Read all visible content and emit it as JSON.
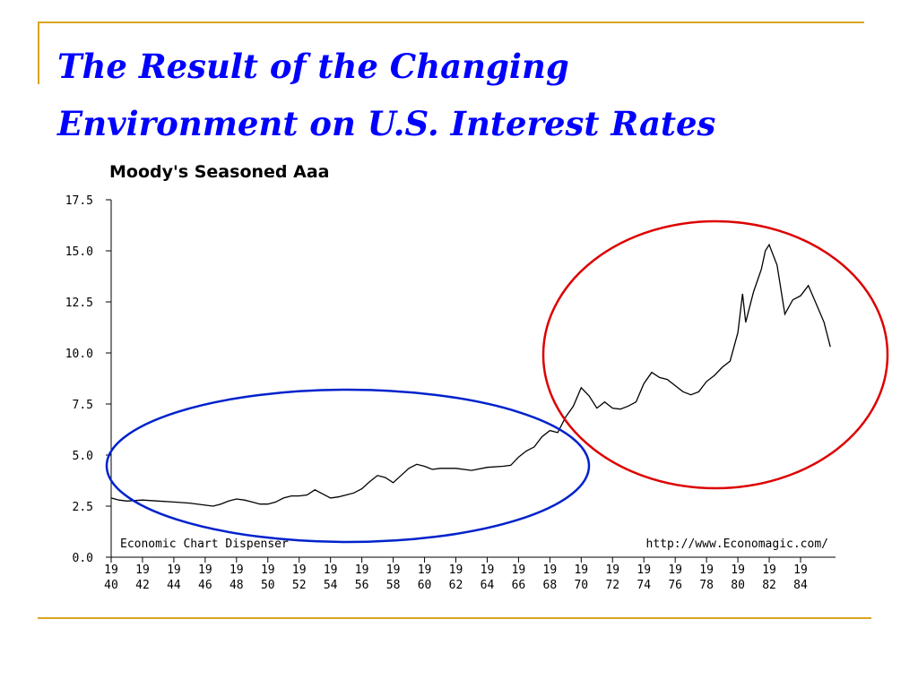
{
  "slide": {
    "title_line1": "The Result of the Changing",
    "title_line2": "Environment on U.S. Interest Rates"
  },
  "colors": {
    "title": "#0000ff",
    "frame": "#d9a521",
    "blue_ellipse": "#0022cc",
    "red_ellipse": "#dd0000",
    "line": "#000000"
  },
  "chart_data": {
    "type": "line",
    "title": "Moody's Seasoned Aaa",
    "xlabel": "",
    "ylabel": "",
    "source_left": "Economic Chart Dispenser",
    "source_right": "http://www.Economagic.com/",
    "xlim": [
      1940,
      1986
    ],
    "ylim": [
      0,
      17.5
    ],
    "y_ticks": [
      "0.0",
      "2.5",
      "5.0",
      "7.5",
      "10.0",
      "12.5",
      "15.0",
      "17.5"
    ],
    "x_tick_labels": [
      [
        "19",
        "40"
      ],
      [
        "19",
        "42"
      ],
      [
        "19",
        "44"
      ],
      [
        "19",
        "46"
      ],
      [
        "19",
        "48"
      ],
      [
        "19",
        "50"
      ],
      [
        "19",
        "52"
      ],
      [
        "19",
        "54"
      ],
      [
        "19",
        "56"
      ],
      [
        "19",
        "58"
      ],
      [
        "19",
        "60"
      ],
      [
        "19",
        "62"
      ],
      [
        "19",
        "64"
      ],
      [
        "19",
        "66"
      ],
      [
        "19",
        "68"
      ],
      [
        "19",
        "70"
      ],
      [
        "19",
        "72"
      ],
      [
        "19",
        "74"
      ],
      [
        "19",
        "76"
      ],
      [
        "19",
        "78"
      ],
      [
        "19",
        "80"
      ],
      [
        "19",
        "82"
      ],
      [
        "19",
        "84"
      ]
    ],
    "grid": false,
    "series": [
      {
        "x": [
          1940.0,
          1940.5,
          1941.0,
          1942.0,
          1943.0,
          1944.0,
          1945.0,
          1946.0,
          1946.5,
          1947.0,
          1947.5,
          1948.0,
          1948.5,
          1949.0,
          1949.5,
          1950.0,
          1950.5,
          1951.0,
          1951.5,
          1952.0,
          1952.5,
          1953.0,
          1953.5,
          1954.0,
          1954.5,
          1955.0,
          1955.5,
          1956.0,
          1956.5,
          1957.0,
          1957.5,
          1958.0,
          1958.5,
          1959.0,
          1959.5,
          1960.0,
          1960.5,
          1961.0,
          1962.0,
          1963.0,
          1964.0,
          1965.0,
          1965.5,
          1966.0,
          1966.5,
          1967.0,
          1967.5,
          1968.0,
          1968.5,
          1969.0,
          1969.5,
          1970.0,
          1970.5,
          1971.0,
          1971.5,
          1972.0,
          1972.5,
          1973.0,
          1973.5,
          1974.0,
          1974.5,
          1975.0,
          1975.5,
          1976.0,
          1976.5,
          1977.0,
          1977.5,
          1978.0,
          1978.5,
          1979.0,
          1979.5,
          1980.0,
          1980.3,
          1980.5,
          1981.0,
          1981.5,
          1981.75,
          1982.0,
          1982.5,
          1983.0,
          1983.5,
          1984.0,
          1984.5,
          1985.0,
          1985.5,
          1985.9
        ],
        "y": [
          2.9,
          2.8,
          2.75,
          2.8,
          2.75,
          2.7,
          2.65,
          2.55,
          2.5,
          2.6,
          2.75,
          2.85,
          2.8,
          2.7,
          2.6,
          2.6,
          2.7,
          2.9,
          3.0,
          3.0,
          3.05,
          3.3,
          3.1,
          2.9,
          2.95,
          3.05,
          3.15,
          3.35,
          3.7,
          4.0,
          3.9,
          3.65,
          4.0,
          4.35,
          4.55,
          4.45,
          4.3,
          4.35,
          4.35,
          4.25,
          4.4,
          4.45,
          4.5,
          4.9,
          5.2,
          5.4,
          5.9,
          6.2,
          6.1,
          6.85,
          7.4,
          8.3,
          7.9,
          7.3,
          7.6,
          7.3,
          7.25,
          7.4,
          7.6,
          8.5,
          9.05,
          8.8,
          8.7,
          8.4,
          8.1,
          7.95,
          8.1,
          8.6,
          8.9,
          9.3,
          9.6,
          11.0,
          12.9,
          11.5,
          13.0,
          14.1,
          15.0,
          15.3,
          14.3,
          11.9,
          12.6,
          12.8,
          13.3,
          12.4,
          11.5,
          10.3
        ]
      }
    ]
  }
}
